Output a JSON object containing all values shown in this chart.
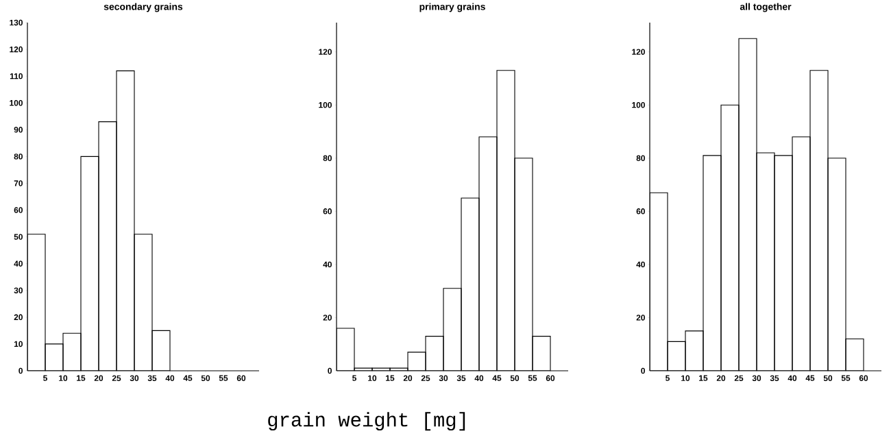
{
  "chart_data": [
    {
      "type": "histogram",
      "title": "secondary grains",
      "bins": [
        0,
        5,
        10,
        15,
        20,
        25,
        30,
        35,
        40
      ],
      "values": [
        51,
        10,
        14,
        80,
        93,
        112,
        51,
        15
      ],
      "color": "#000000",
      "xlim": [
        0,
        65
      ],
      "ylim": [
        0,
        130
      ],
      "xticks": [
        5,
        10,
        15,
        20,
        25,
        30,
        35,
        40,
        45,
        50,
        55,
        60
      ],
      "yticks": [
        0,
        10,
        20,
        30,
        40,
        50,
        60,
        70,
        80,
        90,
        100,
        110,
        120,
        130
      ]
    },
    {
      "type": "histogram",
      "title": "primary grains",
      "xlabel": "grain weight [mg]",
      "bins": [
        0,
        5,
        10,
        15,
        20,
        25,
        30,
        35,
        40,
        45,
        50,
        55,
        60
      ],
      "values": [
        16,
        1,
        1,
        1,
        7,
        13,
        31,
        65,
        88,
        113,
        80,
        13
      ],
      "color": "#000000",
      "xlim": [
        0,
        65
      ],
      "ylim": [
        0,
        131
      ],
      "xticks": [
        5,
        10,
        15,
        20,
        25,
        30,
        35,
        40,
        45,
        50,
        55,
        60
      ],
      "yticks": [
        0,
        20,
        40,
        60,
        80,
        100,
        120
      ]
    },
    {
      "type": "histogram",
      "title": "all together",
      "bins": [
        0,
        5,
        10,
        15,
        20,
        25,
        30,
        35,
        40,
        45,
        50,
        55,
        60
      ],
      "values": [
        67,
        11,
        15,
        81,
        100,
        125,
        82,
        81,
        88,
        113,
        80,
        12
      ],
      "color": "#000000",
      "xlim": [
        0,
        65
      ],
      "ylim": [
        0,
        131
      ],
      "xticks": [
        5,
        10,
        15,
        20,
        25,
        30,
        35,
        40,
        45,
        50,
        55,
        60
      ],
      "yticks": [
        0,
        20,
        40,
        60,
        80,
        100,
        120
      ]
    }
  ]
}
